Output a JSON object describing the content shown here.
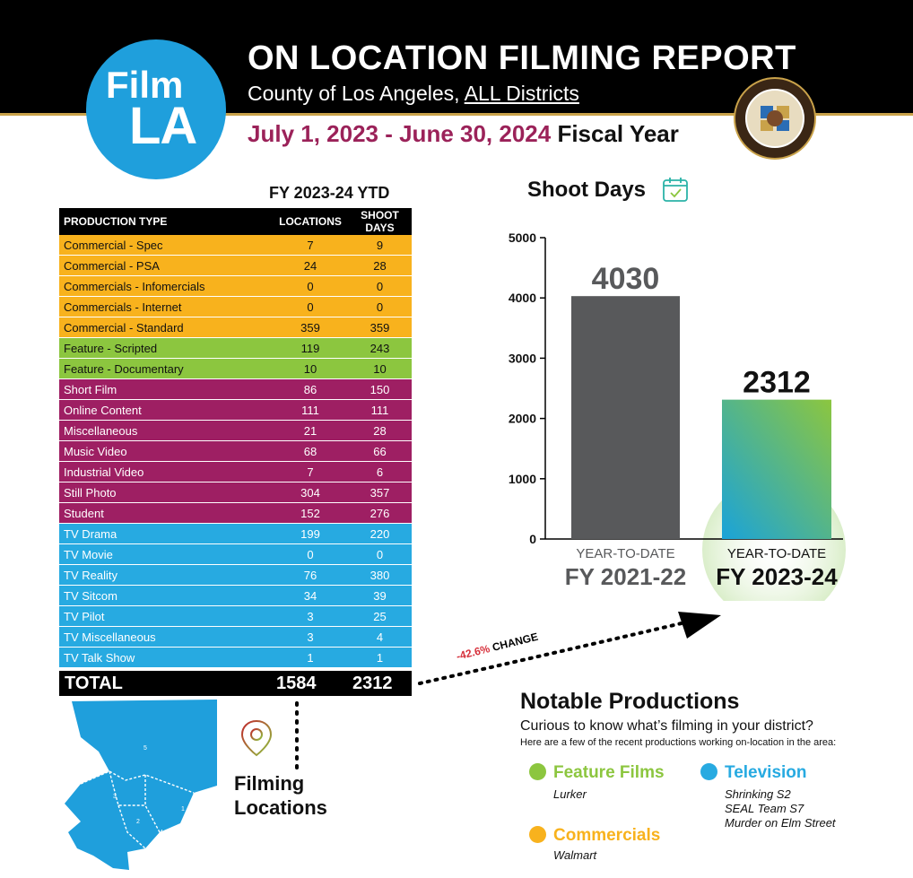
{
  "header": {
    "logo_line1": "Film",
    "logo_line2": "LA",
    "title": "ON LOCATION FILMING REPORT",
    "subtitle_prefix": "County of Los Angeles, ",
    "subtitle_link": "ALL Districts",
    "fy_dates": "July 1, 2023 - June 30, 2024",
    "fy_label": " Fiscal Year",
    "seal_icon": "county-seal-icon"
  },
  "table": {
    "ytd_heading": "FY 2023-24 YTD",
    "columns": [
      "PRODUCTION TYPE",
      "LOCATIONS",
      "SHOOT DAYS"
    ],
    "rows": [
      {
        "type": "Commercial - Spec",
        "locations": "7",
        "shoot_days": "9",
        "category": "commercial"
      },
      {
        "type": "Commercial - PSA",
        "locations": "24",
        "shoot_days": "28",
        "category": "commercial"
      },
      {
        "type": "Commercials - Infomercials",
        "locations": "0",
        "shoot_days": "0",
        "category": "commercial"
      },
      {
        "type": "Commercials - Internet",
        "locations": "0",
        "shoot_days": "0",
        "category": "commercial"
      },
      {
        "type": "Commercial - Standard",
        "locations": "359",
        "shoot_days": "359",
        "category": "commercial"
      },
      {
        "type": "Feature - Scripted",
        "locations": "119",
        "shoot_days": "243",
        "category": "feature"
      },
      {
        "type": "Feature - Documentary",
        "locations": "10",
        "shoot_days": "10",
        "category": "feature"
      },
      {
        "type": "Short Film",
        "locations": "86",
        "shoot_days": "150",
        "category": "other"
      },
      {
        "type": "Online Content",
        "locations": "111",
        "shoot_days": "111",
        "category": "other"
      },
      {
        "type": "Miscellaneous",
        "locations": "21",
        "shoot_days": "28",
        "category": "other"
      },
      {
        "type": "Music Video",
        "locations": "68",
        "shoot_days": "66",
        "category": "other"
      },
      {
        "type": "Industrial Video",
        "locations": "7",
        "shoot_days": "6",
        "category": "other"
      },
      {
        "type": "Still Photo",
        "locations": "304",
        "shoot_days": "357",
        "category": "other"
      },
      {
        "type": "Student",
        "locations": "152",
        "shoot_days": "276",
        "category": "other"
      },
      {
        "type": "TV Drama",
        "locations": "199",
        "shoot_days": "220",
        "category": "tv"
      },
      {
        "type": "TV Movie",
        "locations": "0",
        "shoot_days": "0",
        "category": "tv"
      },
      {
        "type": "TV Reality",
        "locations": "76",
        "shoot_days": "380",
        "category": "tv"
      },
      {
        "type": "TV Sitcom",
        "locations": "34",
        "shoot_days": "39",
        "category": "tv"
      },
      {
        "type": "TV Pilot",
        "locations": "3",
        "shoot_days": "25",
        "category": "tv"
      },
      {
        "type": "TV Miscellaneous",
        "locations": "3",
        "shoot_days": "4",
        "category": "tv"
      },
      {
        "type": "TV Talk Show",
        "locations": "1",
        "shoot_days": "1",
        "category": "tv"
      }
    ],
    "total": {
      "label": "TOTAL",
      "locations": "1584",
      "shoot_days": "2312"
    },
    "category_colors": {
      "commercial": "#f8b21d",
      "feature": "#8cc63f",
      "other": "#9e1f63",
      "tv": "#27aae1"
    }
  },
  "chart_data": {
    "type": "bar",
    "title": "Shoot Days",
    "categories": [
      "YEAR-TO-DATE FY 2021-22",
      "YEAR-TO-DATE FY 2023-24"
    ],
    "category_lines": [
      [
        "YEAR-TO-DATE",
        "FY 2021-22"
      ],
      [
        "YEAR-TO-DATE",
        "FY 2023-24"
      ]
    ],
    "values": [
      4030,
      2312
    ],
    "value_labels": [
      "4030",
      "2312"
    ],
    "ylim": [
      0,
      5000
    ],
    "yticks": [
      0,
      1000,
      2000,
      3000,
      4000,
      5000
    ],
    "grid": false,
    "colors": [
      "#58595b",
      "gradient-teal-green"
    ],
    "icon": "calendar-check-icon"
  },
  "change": {
    "percent": "-42.6%",
    "label": " CHANGE"
  },
  "map": {
    "districts": [
      "5",
      "3",
      "2",
      "4",
      "1"
    ],
    "filming_label_line1": "Filming",
    "filming_label_line2": "Locations",
    "pin_icon": "location-pin-icon"
  },
  "notable": {
    "title": "Notable Productions",
    "question": "Curious to know what’s filming in your district?",
    "subtext": "Here are a few of the recent productions working on-location in the area:",
    "categories": [
      {
        "name": "Feature Films",
        "color": "#8cc63f",
        "items": [
          "Lurker"
        ]
      },
      {
        "name": "Television",
        "color": "#27aae1",
        "items": [
          "Shrinking S2",
          "SEAL Team S7",
          "Murder on Elm Street"
        ]
      },
      {
        "name": "Commercials",
        "color": "#f8b21d",
        "items": [
          "Walmart"
        ]
      }
    ]
  }
}
